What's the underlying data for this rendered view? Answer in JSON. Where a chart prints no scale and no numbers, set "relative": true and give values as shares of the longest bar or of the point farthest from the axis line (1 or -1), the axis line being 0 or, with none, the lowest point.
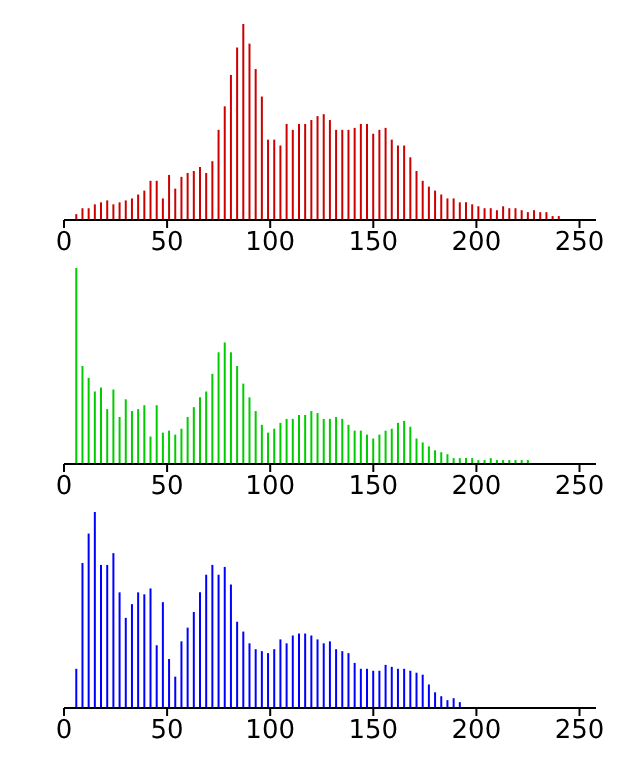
{
  "chart_data": [
    {
      "type": "bar",
      "relative": true,
      "x": [
        6,
        9,
        12,
        15,
        18,
        21,
        24,
        27,
        30,
        33,
        36,
        39,
        42,
        45,
        48,
        51,
        54,
        57,
        60,
        63,
        66,
        69,
        72,
        75,
        78,
        81,
        84,
        87,
        90,
        93,
        96,
        99,
        102,
        105,
        108,
        111,
        114,
        117,
        120,
        123,
        126,
        129,
        132,
        135,
        138,
        141,
        144,
        147,
        150,
        153,
        156,
        159,
        162,
        165,
        168,
        171,
        174,
        177,
        180,
        183,
        186,
        189,
        192,
        195,
        198,
        201,
        204,
        207,
        210,
        213,
        216,
        219,
        222,
        225,
        228,
        231,
        234,
        237,
        240
      ],
      "xlim": [
        0,
        258
      ],
      "xticks": [
        0,
        50,
        100,
        150,
        200,
        250
      ],
      "series": [
        {
          "color": "#cc0000",
          "values": [
            0.03,
            0.06,
            0.06,
            0.08,
            0.09,
            0.1,
            0.08,
            0.09,
            0.1,
            0.11,
            0.13,
            0.15,
            0.2,
            0.2,
            0.11,
            0.23,
            0.16,
            0.22,
            0.24,
            0.25,
            0.27,
            0.24,
            0.3,
            0.46,
            0.58,
            0.74,
            0.88,
            1.0,
            0.9,
            0.77,
            0.63,
            0.41,
            0.41,
            0.38,
            0.49,
            0.46,
            0.49,
            0.49,
            0.51,
            0.53,
            0.54,
            0.51,
            0.46,
            0.46,
            0.46,
            0.47,
            0.49,
            0.49,
            0.44,
            0.46,
            0.47,
            0.41,
            0.38,
            0.38,
            0.32,
            0.25,
            0.2,
            0.17,
            0.15,
            0.13,
            0.11,
            0.11,
            0.09,
            0.09,
            0.08,
            0.07,
            0.06,
            0.06,
            0.05,
            0.07,
            0.06,
            0.06,
            0.05,
            0.04,
            0.05,
            0.04,
            0.04,
            0.02,
            0.02
          ]
        }
      ]
    },
    {
      "type": "bar",
      "relative": true,
      "x": [
        6,
        9,
        12,
        15,
        18,
        21,
        24,
        27,
        30,
        33,
        36,
        39,
        42,
        45,
        48,
        51,
        54,
        57,
        60,
        63,
        66,
        69,
        72,
        75,
        78,
        81,
        84,
        87,
        90,
        93,
        96,
        99,
        102,
        105,
        108,
        111,
        114,
        117,
        120,
        123,
        126,
        129,
        132,
        135,
        138,
        141,
        144,
        147,
        150,
        153,
        156,
        159,
        162,
        165,
        168,
        171,
        174,
        177,
        180,
        183,
        186,
        189,
        192,
        195,
        198,
        201,
        204,
        207,
        210,
        213,
        216,
        219,
        222,
        225
      ],
      "xlim": [
        0,
        258
      ],
      "xticks": [
        0,
        50,
        100,
        150,
        200,
        250
      ],
      "series": [
        {
          "color": "#00cc00",
          "values": [
            1.0,
            0.5,
            0.44,
            0.37,
            0.39,
            0.28,
            0.38,
            0.24,
            0.33,
            0.27,
            0.28,
            0.3,
            0.14,
            0.3,
            0.16,
            0.17,
            0.15,
            0.18,
            0.24,
            0.29,
            0.34,
            0.37,
            0.46,
            0.57,
            0.62,
            0.57,
            0.5,
            0.41,
            0.34,
            0.27,
            0.2,
            0.16,
            0.18,
            0.21,
            0.23,
            0.23,
            0.25,
            0.25,
            0.27,
            0.26,
            0.23,
            0.23,
            0.24,
            0.23,
            0.2,
            0.17,
            0.17,
            0.15,
            0.13,
            0.15,
            0.17,
            0.18,
            0.21,
            0.22,
            0.19,
            0.13,
            0.11,
            0.09,
            0.07,
            0.06,
            0.05,
            0.03,
            0.03,
            0.03,
            0.03,
            0.02,
            0.02,
            0.03,
            0.02,
            0.02,
            0.02,
            0.02,
            0.02,
            0.02
          ]
        }
      ]
    },
    {
      "type": "bar",
      "relative": true,
      "x": [
        6,
        9,
        12,
        15,
        18,
        21,
        24,
        27,
        30,
        33,
        36,
        39,
        42,
        45,
        48,
        51,
        54,
        57,
        60,
        63,
        66,
        69,
        72,
        75,
        78,
        81,
        84,
        87,
        90,
        93,
        96,
        99,
        102,
        105,
        108,
        111,
        114,
        117,
        120,
        123,
        126,
        129,
        132,
        135,
        138,
        141,
        144,
        147,
        150,
        153,
        156,
        159,
        162,
        165,
        168,
        171,
        174,
        177,
        180,
        183,
        186,
        189,
        192
      ],
      "xlim": [
        0,
        258
      ],
      "xticks": [
        0,
        50,
        100,
        150,
        200,
        250
      ],
      "series": [
        {
          "color": "#0000ff",
          "values": [
            0.2,
            0.74,
            0.89,
            1.0,
            0.73,
            0.73,
            0.79,
            0.59,
            0.46,
            0.53,
            0.59,
            0.58,
            0.61,
            0.32,
            0.54,
            0.25,
            0.16,
            0.34,
            0.41,
            0.49,
            0.59,
            0.68,
            0.73,
            0.68,
            0.72,
            0.63,
            0.44,
            0.39,
            0.33,
            0.3,
            0.29,
            0.28,
            0.3,
            0.35,
            0.33,
            0.37,
            0.38,
            0.38,
            0.37,
            0.35,
            0.33,
            0.34,
            0.3,
            0.29,
            0.28,
            0.23,
            0.2,
            0.2,
            0.19,
            0.19,
            0.22,
            0.21,
            0.2,
            0.2,
            0.19,
            0.18,
            0.17,
            0.12,
            0.08,
            0.06,
            0.04,
            0.05,
            0.03
          ]
        }
      ]
    }
  ]
}
